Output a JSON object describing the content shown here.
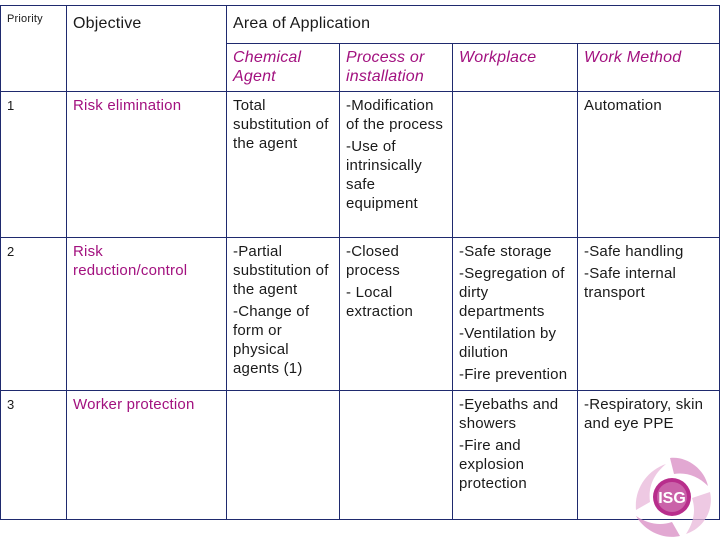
{
  "headers": {
    "priority": "Priority",
    "objective": "Objective",
    "area": "Area of Application",
    "sub": [
      "Chemical Agent",
      "Process or installation",
      "Workplace",
      "Work Method"
    ]
  },
  "rows": [
    {
      "priority": "1",
      "objective": "Risk elimination",
      "chemical_agent": [
        "Total substitution of the agent"
      ],
      "process": [
        "-Modification of the process",
        "-Use of intrinsically safe equipment"
      ],
      "workplace": [],
      "work_method": [
        "Automation"
      ]
    },
    {
      "priority": "2",
      "objective": "Risk reduction/control",
      "chemical_agent": [
        "-Partial substitution of the agent",
        "-Change of form or physical agents (1)"
      ],
      "process": [
        "-Closed process",
        "- Local extraction"
      ],
      "workplace": [
        "-Safe storage",
        "-Segregation of dirty departments",
        "-Ventilation by dilution",
        "-Fire prevention"
      ],
      "work_method": [
        "-Safe handling",
        "-Safe internal transport"
      ]
    },
    {
      "priority": "3",
      "objective": "Worker protection",
      "chemical_agent": [],
      "process": [],
      "workplace": [
        "-Eyebaths and showers",
        "-Fire and explosion protection"
      ],
      "work_method": [
        "-Respiratory, skin and eye PPE"
      ]
    }
  ],
  "logo": {
    "text": "ISG",
    "colors": {
      "primary": "#b0177f",
      "light": "#d98cc4",
      "hands": "#e9b8da"
    }
  }
}
